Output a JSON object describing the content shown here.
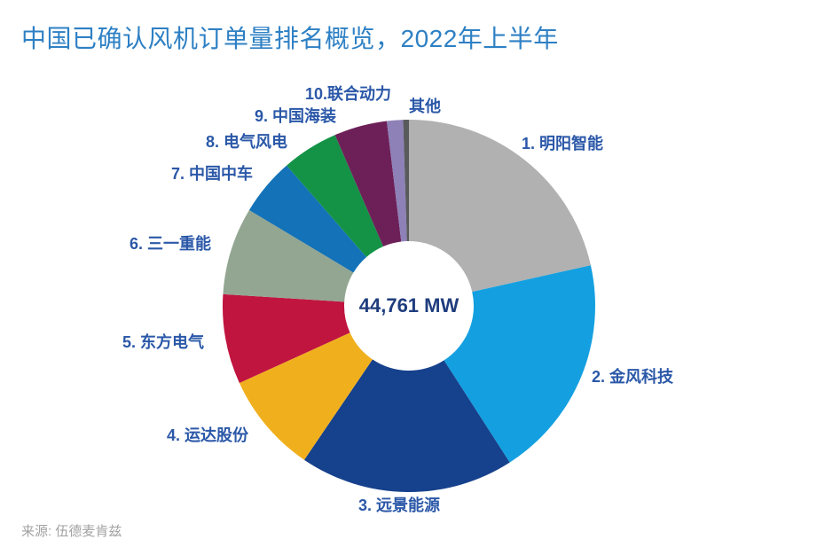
{
  "title": "中国已确认风机订单量排名概览，2022年上半年",
  "source": "来源: 伍德麦肯兹",
  "center_total": "44,761 MW",
  "chart_data": {
    "type": "pie",
    "donut": true,
    "title": "中国已确认风机订单量排名概览，2022年上半年",
    "total_mw": 44761,
    "total_label": "44,761 MW",
    "start_angle_deg": 0,
    "direction": "clockwise",
    "legend_position": "around-slices",
    "segments": [
      {
        "label": "1. 明阳智能",
        "name": "明阳智能",
        "share_pct": 21.5,
        "color": "#b1b1b1"
      },
      {
        "label": "2. 金风科技",
        "name": "金风科技",
        "share_pct": 19.4,
        "color": "#14a0e0"
      },
      {
        "label": "3. 远景能源",
        "name": "远景能源",
        "share_pct": 18.6,
        "color": "#16418c"
      },
      {
        "label": "4. 运达股份",
        "name": "运达股份",
        "share_pct": 8.7,
        "color": "#f0b01e"
      },
      {
        "label": "5. 东方电气",
        "name": "东方电气",
        "share_pct": 7.8,
        "color": "#c0153f"
      },
      {
        "label": "6. 三一重能",
        "name": "三一重能",
        "share_pct": 7.6,
        "color": "#92a692"
      },
      {
        "label": "7. 中国中车",
        "name": "中国中车",
        "share_pct": 5.0,
        "color": "#1472b8"
      },
      {
        "label": "8. 电气风电",
        "name": "电气风电",
        "share_pct": 4.9,
        "color": "#149347"
      },
      {
        "label": "9. 中国海装",
        "name": "中国海装",
        "share_pct": 4.6,
        "color": "#6d2058"
      },
      {
        "label": "10.联合动力",
        "name": "联合动力",
        "share_pct": 1.4,
        "color": "#8d81b7"
      },
      {
        "label": "其他",
        "name": "其他",
        "share_pct": 0.5,
        "color": "#595a5c"
      }
    ]
  }
}
